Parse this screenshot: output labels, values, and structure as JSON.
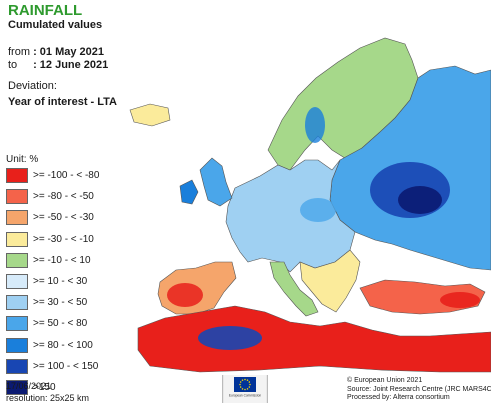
{
  "header": {
    "title": "RAINFALL",
    "subtitle": "Cumulated values",
    "from_label": "from",
    "from_value": ": 01 May 2021",
    "to_label": "to",
    "to_value": ": 12 June 2021",
    "deviation_label": "Deviation:",
    "year_of_interest": "Year of interest - LTA"
  },
  "legend": {
    "unit": "Unit: %",
    "items": [
      {
        "label": ">= -100 - < -80",
        "color": "#e8201b"
      },
      {
        "label": ">= -80 - < -50",
        "color": "#f4634a"
      },
      {
        "label": ">= -50 - < -30",
        "color": "#f5a56b"
      },
      {
        "label": ">= -30 - < -10",
        "color": "#fbeb9b"
      },
      {
        "label": ">= -10 - < 10",
        "color": "#a6d88a"
      },
      {
        "label": ">= 10 - < 30",
        "color": "#d7ebfa"
      },
      {
        "label": ">= 30 - < 50",
        "color": "#9fd0f2"
      },
      {
        "label": ">= 50 - < 80",
        "color": "#4aa6ea"
      },
      {
        "label": ">= 80 - < 100",
        "color": "#1a7fdb"
      },
      {
        "label": ">= 100 - < 150",
        "color": "#1846b3"
      },
      {
        "label": ">150",
        "color": "#0b1a72"
      }
    ]
  },
  "footer": {
    "date": "17/06/2021",
    "resolution": "resolution: 25x25 km",
    "logo_caption": "European Commission",
    "copyright": "© European Union 2021",
    "source": "Source: Joint Research Centre (JRC MARS4CAST)",
    "processed": "Processed by: Alterra consortium"
  },
  "colors": {
    "sea": "#ffffff",
    "border": "#555555",
    "title_green": "#2e9a2e",
    "eu_blue": "#003399",
    "eu_star": "#ffdd00"
  }
}
